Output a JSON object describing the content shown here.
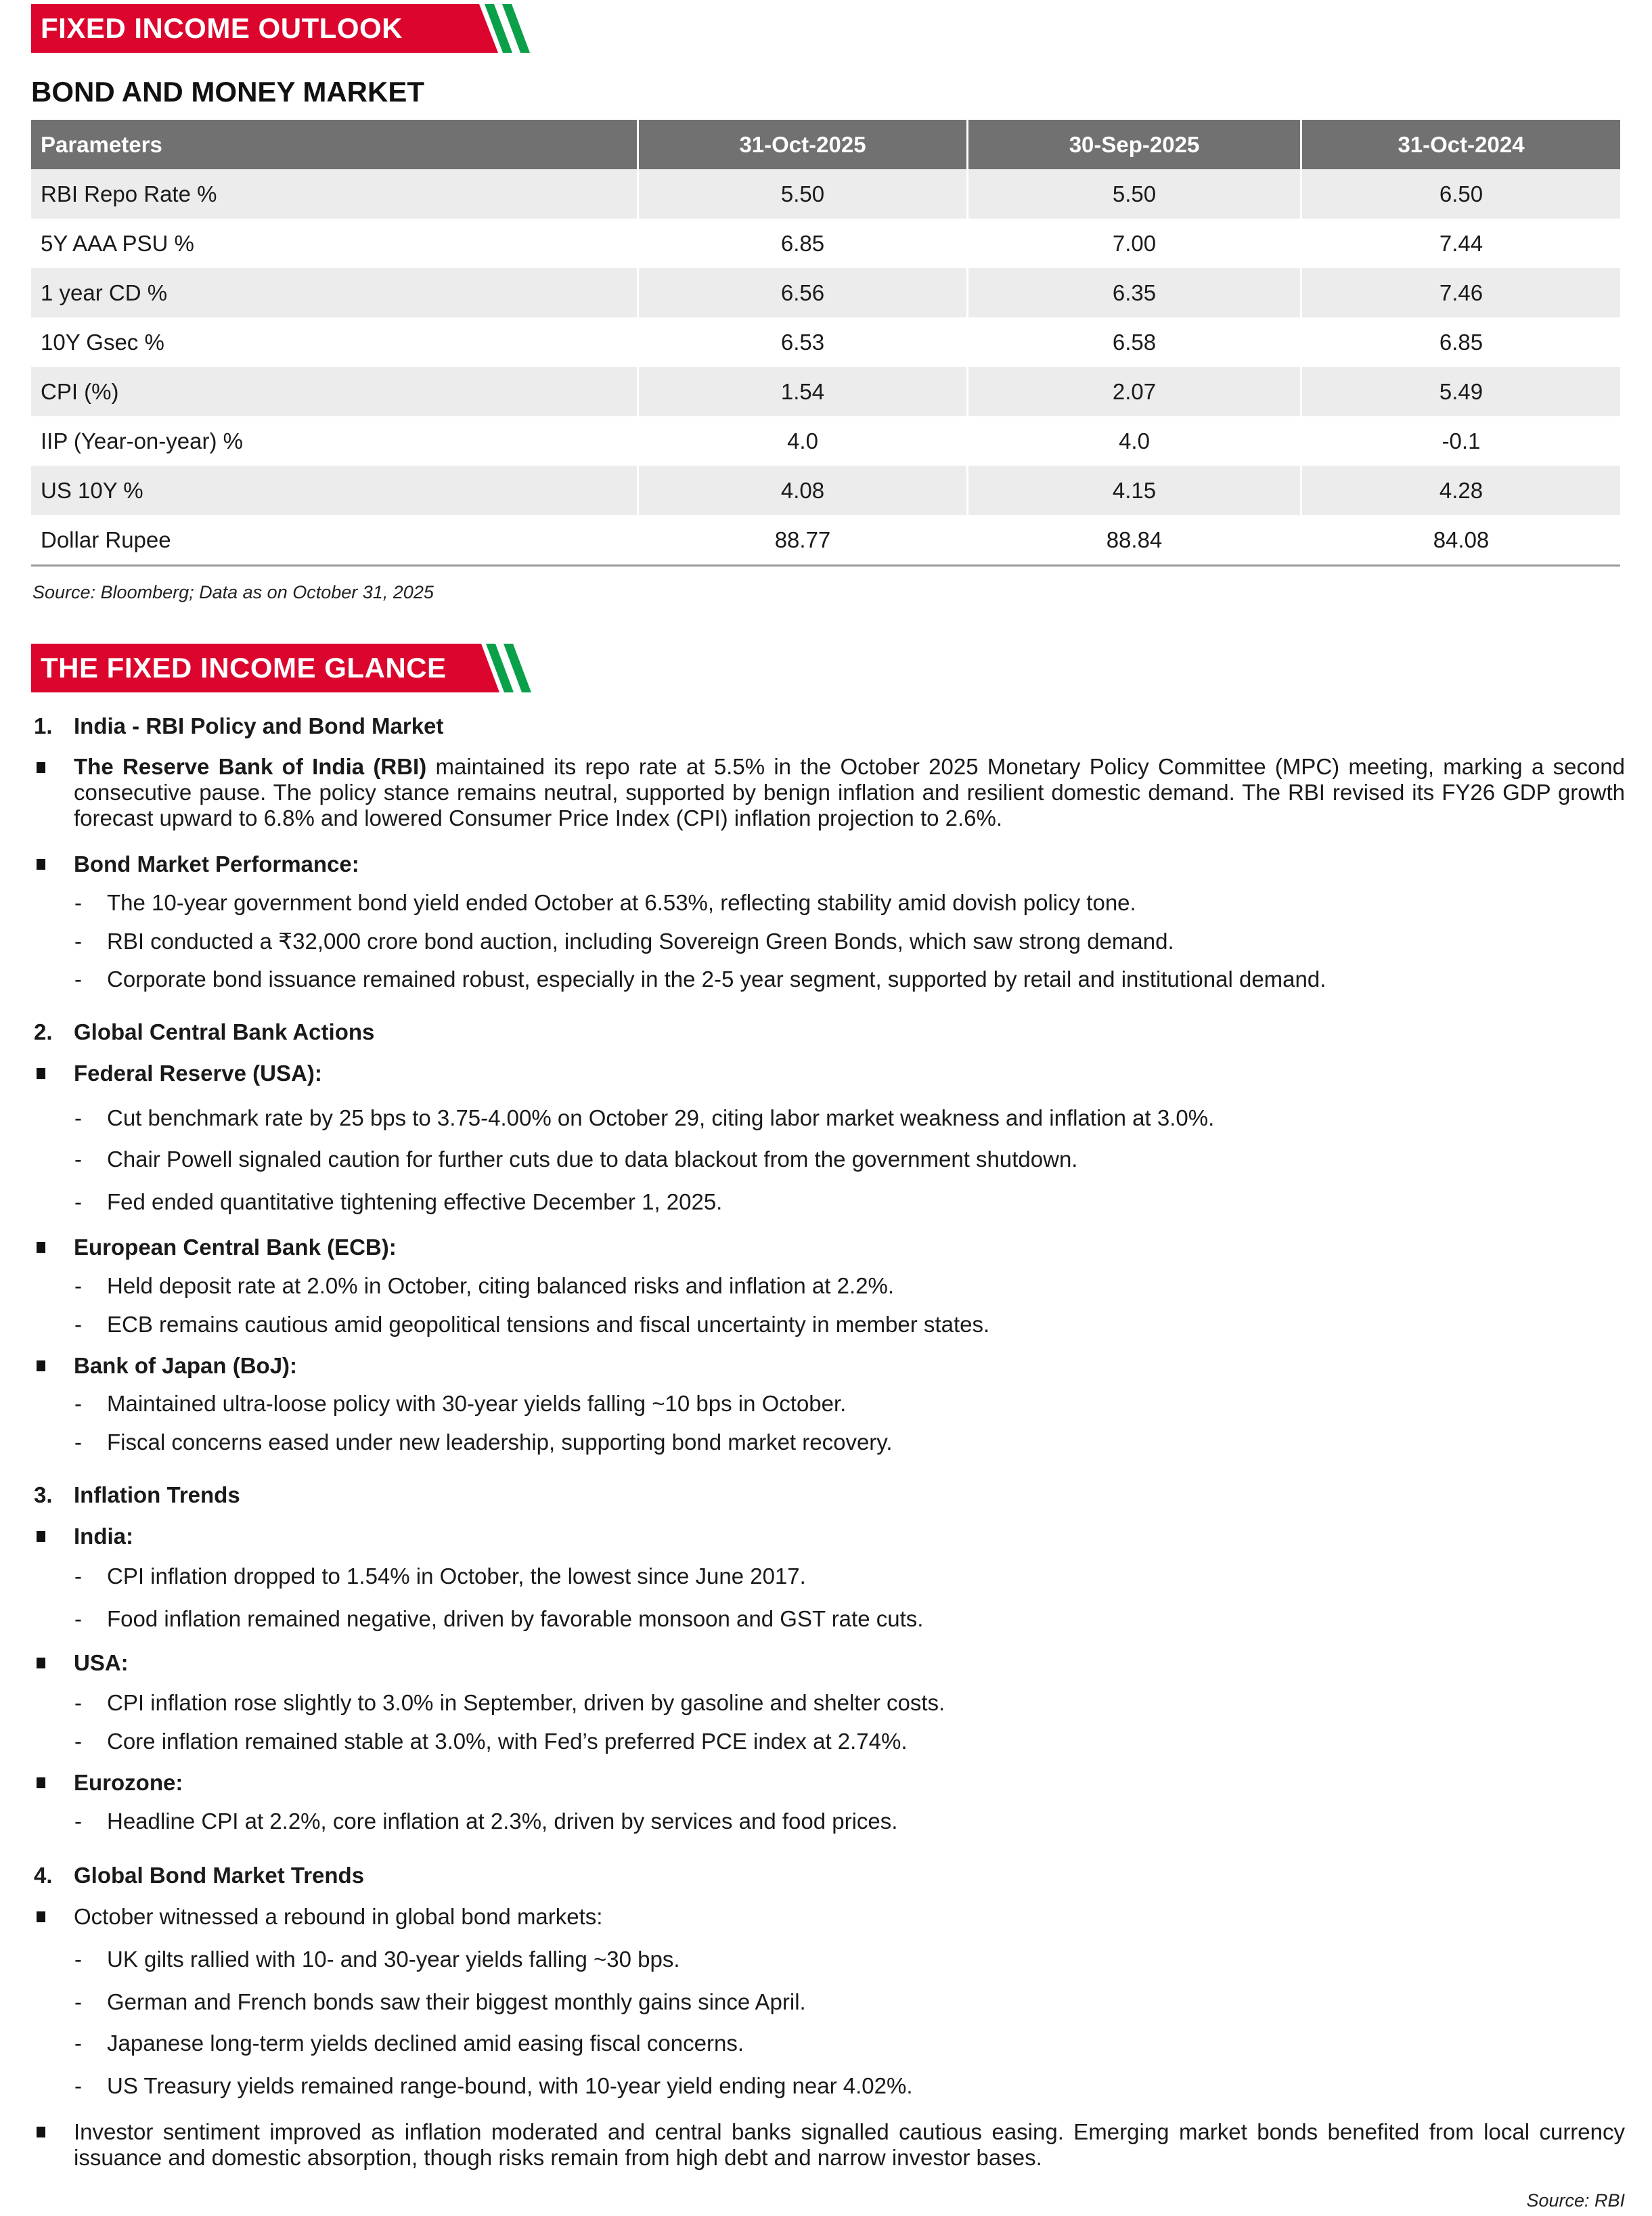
{
  "banner1": "FIXED INCOME OUTLOOK",
  "subtitle": "BOND AND MONEY MARKET",
  "table": {
    "headers": [
      "Parameters",
      "31-Oct-2025",
      "30-Sep-2025",
      "31-Oct-2024"
    ],
    "rows": [
      [
        "RBI Repo Rate %",
        "5.50",
        "5.50",
        "6.50"
      ],
      [
        "5Y AAA PSU %",
        "6.85",
        "7.00",
        "7.44"
      ],
      [
        "1 year CD %",
        "6.56",
        "6.35",
        "7.46"
      ],
      [
        "10Y Gsec %",
        "6.53",
        "6.58",
        "6.85"
      ],
      [
        "CPI (%)",
        "1.54",
        "2.07",
        "5.49"
      ],
      [
        "IIP (Year-on-year) %",
        "4.0",
        "4.0",
        "-0.1"
      ],
      [
        "US 10Y %",
        "4.08",
        "4.15",
        "4.28"
      ],
      [
        "Dollar Rupee",
        "88.77",
        "88.84",
        "84.08"
      ]
    ],
    "source": "Source: Bloomberg; Data as on October 31, 2025"
  },
  "banner2": "THE FIXED INCOME GLANCE",
  "colors": {
    "banner_red": "#dc052d",
    "stripe_green": "#0aa04a",
    "header_gray": "#717171"
  },
  "dash": "-",
  "s1": {
    "num": "1.",
    "title": "India - RBI Policy and Bond Market",
    "p1_bold": "The Reserve Bank of India (RBI)",
    "p1_text": " maintained its repo rate at 5.5% in the October 2025 Monetary Policy Committee (MPC) meeting, marking a second consecutive pause. The policy stance remains neutral, supported by benign inflation and resilient domestic demand. The RBI revised its FY26 GDP growth forecast upward to 6.8% and lowered Consumer Price Index (CPI) inflation projection to 2.6%.",
    "b2": "Bond Market Performance:",
    "d": [
      "The 10-year government bond yield ended October at 6.53%, reflecting stability amid dovish policy tone.",
      "RBI conducted a ₹32,000 crore bond auction, including Sovereign Green Bonds, which saw strong demand.",
      "Corporate bond issuance remained robust, especially in the 2-5 year segment, supported by retail and institutional demand."
    ]
  },
  "s2": {
    "num": "2.",
    "title": "Global Central Bank Actions",
    "fed": "Federal Reserve (USA):",
    "fed_d": [
      "Cut benchmark rate by 25 bps to 3.75-4.00% on October 29, citing labor market weakness and inflation at 3.0%.",
      "Chair Powell signaled caution for further cuts due to data blackout from the government shutdown.",
      "Fed ended quantitative tightening effective December 1, 2025."
    ],
    "ecb": "European Central Bank (ECB):",
    "ecb_d": [
      "Held deposit rate at 2.0% in October, citing balanced risks and inflation at 2.2%.",
      "ECB remains cautious amid geopolitical tensions and fiscal uncertainty in member states."
    ],
    "boj": "Bank of Japan (BoJ):",
    "boj_d": [
      "Maintained ultra-loose policy with 30-year yields falling ~10 bps in October.",
      "Fiscal concerns eased under new leadership, supporting bond market recovery."
    ]
  },
  "s3": {
    "num": "3.",
    "title": "Inflation Trends",
    "india": "India:",
    "india_d": [
      "CPI inflation dropped to 1.54% in October, the lowest since June 2017.",
      "Food inflation remained negative, driven by favorable monsoon and GST rate cuts."
    ],
    "usa": "USA:",
    "usa_d": [
      "CPI inflation rose slightly to 3.0% in September, driven by gasoline and shelter costs.",
      "Core inflation remained stable at 3.0%, with Fed’s preferred PCE index at 2.74%."
    ],
    "eu": "Eurozone:",
    "eu_d": [
      "Headline CPI at 2.2%, core inflation at 2.3%, driven by services and food prices."
    ]
  },
  "s4": {
    "num": "4.",
    "title": "Global Bond Market Trends",
    "b1": "October witnessed a rebound in global bond markets:",
    "d": [
      "UK gilts rallied with 10- and 30-year yields falling ~30 bps.",
      "German and French bonds saw their biggest monthly gains since April.",
      "Japanese long-term yields declined amid easing fiscal concerns.",
      "US Treasury yields remained range-bound, with 10-year yield ending near 4.02%."
    ],
    "b2": "Investor sentiment improved as inflation moderated and central banks signalled cautious easing. Emerging market bonds benefited from local currency issuance and domestic absorption, though risks remain from high debt and narrow investor bases."
  },
  "source_rbi": "Source: RBI"
}
